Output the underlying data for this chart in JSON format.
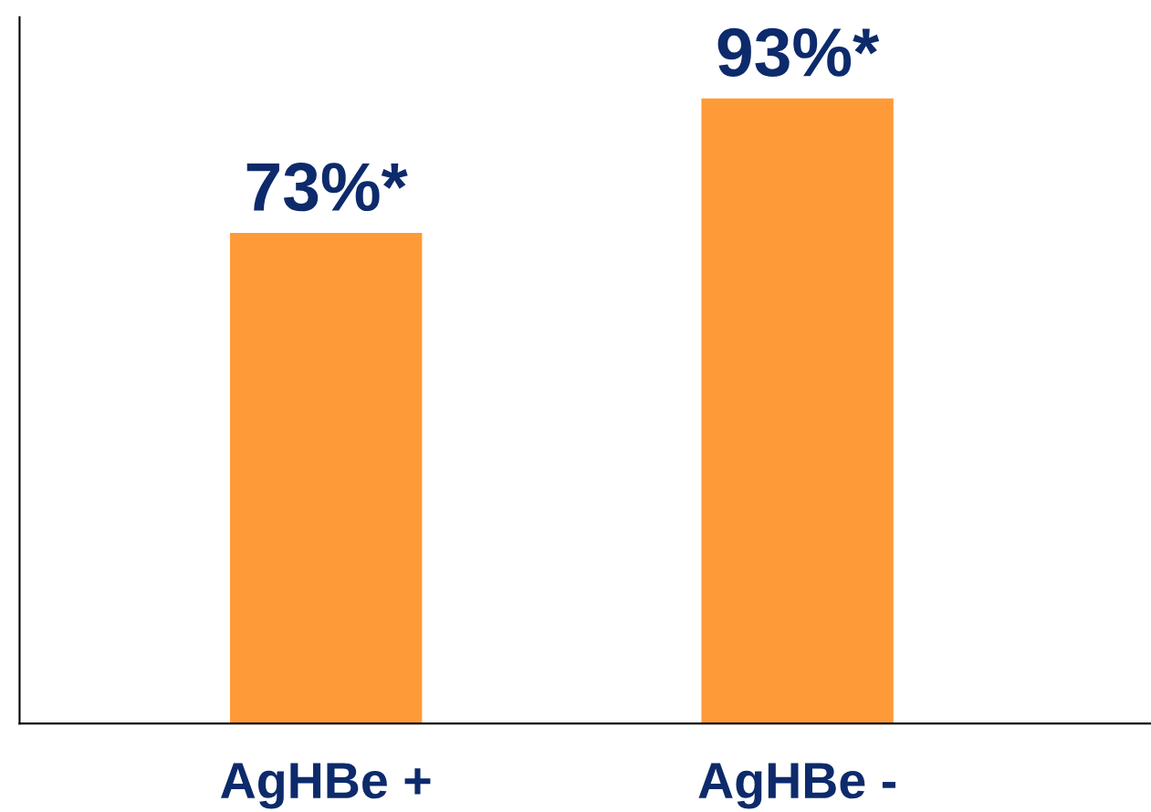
{
  "chart_data": {
    "type": "bar",
    "categories": [
      "AgHBe +",
      "AgHBe -"
    ],
    "values": [
      73,
      93
    ],
    "value_labels": [
      "73%*",
      "93%*"
    ],
    "color": "#ff9a38",
    "ylim": [
      0,
      105
    ],
    "tick_labels": "x",
    "grid": false,
    "legend": false
  }
}
